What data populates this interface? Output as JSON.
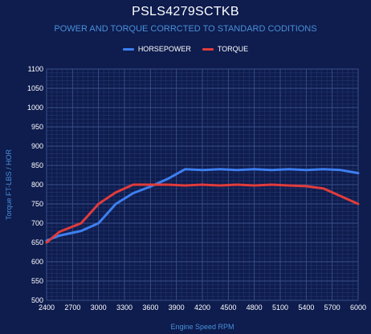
{
  "chart_data": {
    "type": "line",
    "title": "PSLS4279SCTKB",
    "subtitle": "POWER AND TORQUE CORRCTED TO STANDARD CODITIONS",
    "xlabel": "Engine Speed RPM",
    "ylabel": "Torque FT-LBS / HOR",
    "xlim": [
      2400,
      6000
    ],
    "ylim": [
      500,
      1100
    ],
    "x_ticks": [
      2400,
      2700,
      3000,
      3300,
      3600,
      3900,
      4200,
      4500,
      4800,
      5100,
      5400,
      5700,
      6000
    ],
    "y_ticks": [
      500,
      550,
      600,
      650,
      700,
      750,
      800,
      850,
      900,
      950,
      1000,
      1050,
      1100
    ],
    "legend_position": "top-center",
    "grid": true,
    "x": [
      2400,
      2550,
      2800,
      3000,
      3200,
      3400,
      3600,
      3800,
      4000,
      4200,
      4400,
      4600,
      4800,
      5000,
      5200,
      5400,
      5600,
      5800,
      6000
    ],
    "series": [
      {
        "name": "HORSEPOWER",
        "color": "#3d7ff0",
        "values": [
          655,
          668,
          680,
          700,
          750,
          778,
          795,
          815,
          840,
          838,
          840,
          838,
          840,
          838,
          840,
          838,
          840,
          838,
          830
        ]
      },
      {
        "name": "TORQUE",
        "color": "#e03c3c",
        "values": [
          650,
          678,
          700,
          750,
          780,
          800,
          800,
          800,
          798,
          800,
          798,
          800,
          798,
          800,
          798,
          796,
          790,
          770,
          750
        ]
      }
    ]
  }
}
